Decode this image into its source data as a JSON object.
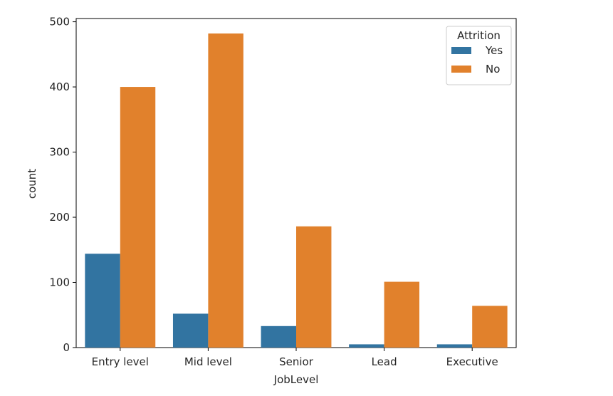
{
  "chart_data": {
    "type": "bar",
    "categories": [
      "Entry level",
      "Mid level",
      "Senior",
      "Lead",
      "Executive"
    ],
    "series": [
      {
        "name": "Yes",
        "values": [
          144,
          52,
          33,
          5,
          5
        ],
        "color": "#3274a1"
      },
      {
        "name": "No",
        "values": [
          400,
          482,
          186,
          101,
          64
        ],
        "color": "#e1812c"
      }
    ],
    "title": "",
    "xlabel": "JobLevel",
    "ylabel": "count",
    "ylim": [
      0,
      505
    ],
    "yticks": [
      0,
      100,
      200,
      300,
      400,
      500
    ],
    "grid": false,
    "legend": {
      "title": "Attrition",
      "placement": "top-right"
    }
  }
}
